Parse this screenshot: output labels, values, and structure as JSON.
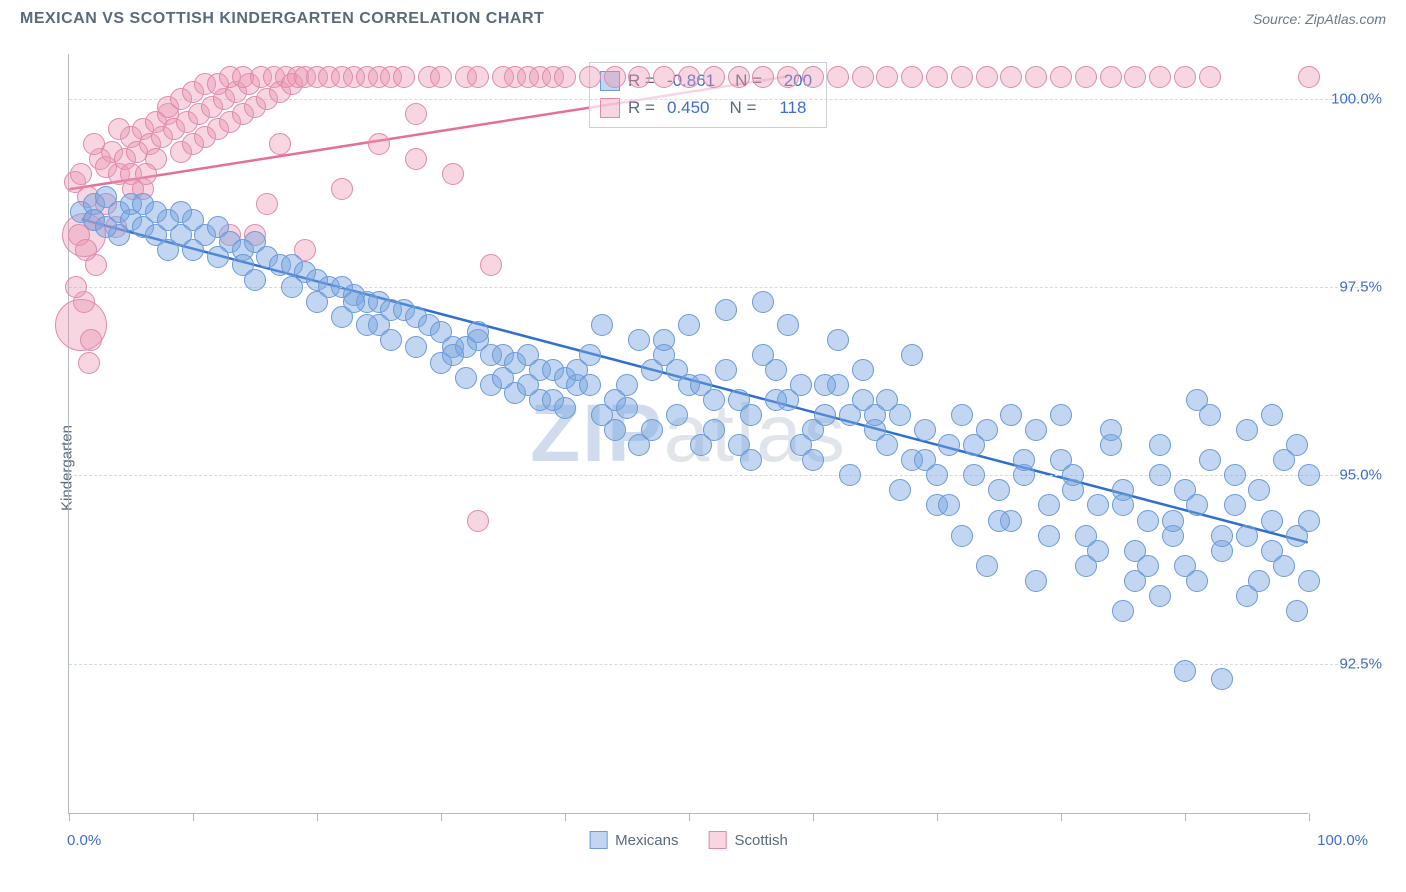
{
  "header": {
    "title": "MEXICAN VS SCOTTISH KINDERGARTEN CORRELATION CHART",
    "source_prefix": "Source: ",
    "source_name": "ZipAtlas.com"
  },
  "chart": {
    "type": "scatter",
    "ylabel": "Kindergarten",
    "xlim": [
      0,
      100
    ],
    "ylim": [
      90.5,
      100.6
    ],
    "x_tick_positions": [
      0,
      10,
      20,
      30,
      40,
      50,
      60,
      70,
      80,
      90,
      100
    ],
    "x_label_min": "0.0%",
    "x_label_max": "100.0%",
    "y_ticks": [
      {
        "v": 92.5,
        "label": "92.5%"
      },
      {
        "v": 95.0,
        "label": "95.0%"
      },
      {
        "v": 97.5,
        "label": "97.5%"
      },
      {
        "v": 100.0,
        "label": "100.0%"
      }
    ],
    "background_color": "#ffffff",
    "grid_color": "#d5dae0",
    "axis_color": "#b0b7c0",
    "tick_label_color": "#3b6fc9",
    "text_color": "#5a6a7a",
    "watermark_main": "ZIP",
    "watermark_rest": "atlas",
    "series": {
      "mexicans": {
        "label": "Mexicans",
        "fill": "rgba(120,165,225,0.45)",
        "stroke": "#6a9ad8",
        "trend_color": "#2f6fd0",
        "trend": {
          "x1": 1,
          "y1": 98.4,
          "x2": 100,
          "y2": 94.1
        },
        "marker_r": 11
      },
      "scottish": {
        "label": "Scottish",
        "fill": "rgba(235,150,180,0.40)",
        "stroke": "#e08aab",
        "trend_color": "#e56f9a",
        "trend": {
          "x1": 0,
          "y1": 98.8,
          "x2": 58,
          "y2": 100.3
        },
        "marker_r": 11
      }
    },
    "stats": [
      {
        "swatch_fill": "rgba(120,165,225,0.45)",
        "swatch_stroke": "#6a9ad8",
        "r_label": "R =",
        "r": "-0.861",
        "n_label": "N =",
        "n": "200"
      },
      {
        "swatch_fill": "rgba(235,150,180,0.40)",
        "swatch_stroke": "#e08aab",
        "r_label": "R =",
        "r": "0.450",
        "n_label": "N =",
        "n": "118"
      }
    ],
    "legend": [
      {
        "label": "Mexicans",
        "fill": "rgba(120,165,225,0.45)",
        "stroke": "#6a9ad8"
      },
      {
        "label": "Scottish",
        "fill": "rgba(235,150,180,0.40)",
        "stroke": "#e08aab"
      }
    ],
    "points": {
      "mexicans": [
        [
          1,
          98.5
        ],
        [
          2,
          98.6
        ],
        [
          3,
          98.7
        ],
        [
          2,
          98.4
        ],
        [
          4,
          98.5
        ],
        [
          5,
          98.4
        ],
        [
          4,
          98.2
        ],
        [
          6,
          98.3
        ],
        [
          3,
          98.3
        ],
        [
          7,
          98.2
        ],
        [
          5,
          98.6
        ],
        [
          6,
          98.6
        ],
        [
          8,
          98.4
        ],
        [
          7,
          98.5
        ],
        [
          9,
          98.2
        ],
        [
          8,
          98.0
        ],
        [
          10,
          98.4
        ],
        [
          9,
          98.5
        ],
        [
          11,
          98.2
        ],
        [
          12,
          98.3
        ],
        [
          10,
          98.0
        ],
        [
          13,
          98.1
        ],
        [
          12,
          97.9
        ],
        [
          14,
          98.0
        ],
        [
          15,
          98.1
        ],
        [
          14,
          97.8
        ],
        [
          16,
          97.9
        ],
        [
          17,
          97.8
        ],
        [
          15,
          97.6
        ],
        [
          18,
          97.8
        ],
        [
          19,
          97.7
        ],
        [
          18,
          97.5
        ],
        [
          20,
          97.6
        ],
        [
          21,
          97.5
        ],
        [
          20,
          97.3
        ],
        [
          22,
          97.5
        ],
        [
          23,
          97.4
        ],
        [
          24,
          97.3
        ],
        [
          22,
          97.1
        ],
        [
          25,
          97.3
        ],
        [
          26,
          97.2
        ],
        [
          24,
          97.0
        ],
        [
          27,
          97.2
        ],
        [
          28,
          97.1
        ],
        [
          26,
          96.8
        ],
        [
          29,
          97.0
        ],
        [
          30,
          96.9
        ],
        [
          28,
          96.7
        ],
        [
          31,
          96.7
        ],
        [
          32,
          96.7
        ],
        [
          30,
          96.5
        ],
        [
          33,
          96.8
        ],
        [
          34,
          96.6
        ],
        [
          32,
          96.3
        ],
        [
          35,
          96.6
        ],
        [
          36,
          96.5
        ],
        [
          34,
          96.2
        ],
        [
          37,
          96.6
        ],
        [
          38,
          96.4
        ],
        [
          36,
          96.1
        ],
        [
          39,
          96.4
        ],
        [
          40,
          96.3
        ],
        [
          38,
          96.0
        ],
        [
          41,
          96.2
        ],
        [
          42,
          96.2
        ],
        [
          40,
          95.9
        ],
        [
          43,
          97.0
        ],
        [
          44,
          96.0
        ],
        [
          42,
          96.6
        ],
        [
          45,
          95.9
        ],
        [
          46,
          96.8
        ],
        [
          44,
          95.6
        ],
        [
          47,
          96.4
        ],
        [
          48,
          96.6
        ],
        [
          46,
          95.4
        ],
        [
          49,
          96.4
        ],
        [
          50,
          96.2
        ],
        [
          48,
          96.8
        ],
        [
          51,
          96.2
        ],
        [
          52,
          96.0
        ],
        [
          50,
          97.0
        ],
        [
          53,
          97.2
        ],
        [
          54,
          96.0
        ],
        [
          52,
          95.6
        ],
        [
          55,
          95.8
        ],
        [
          56,
          96.6
        ],
        [
          54,
          95.4
        ],
        [
          57,
          96.4
        ],
        [
          58,
          96.0
        ],
        [
          56,
          97.3
        ],
        [
          59,
          96.2
        ],
        [
          60,
          95.6
        ],
        [
          58,
          97.0
        ],
        [
          61,
          95.8
        ],
        [
          62,
          96.2
        ],
        [
          60,
          95.2
        ],
        [
          63,
          95.8
        ],
        [
          64,
          96.0
        ],
        [
          62,
          96.8
        ],
        [
          65,
          95.6
        ],
        [
          66,
          95.4
        ],
        [
          64,
          96.4
        ],
        [
          67,
          95.8
        ],
        [
          68,
          95.2
        ],
        [
          66,
          96.0
        ],
        [
          69,
          95.6
        ],
        [
          70,
          95.0
        ],
        [
          68,
          96.6
        ],
        [
          71,
          95.4
        ],
        [
          72,
          95.8
        ],
        [
          70,
          94.6
        ],
        [
          73,
          95.0
        ],
        [
          74,
          95.6
        ],
        [
          72,
          94.2
        ],
        [
          75,
          94.8
        ],
        [
          76,
          95.8
        ],
        [
          74,
          93.8
        ],
        [
          77,
          95.0
        ],
        [
          78,
          95.6
        ],
        [
          76,
          94.4
        ],
        [
          79,
          94.6
        ],
        [
          80,
          95.2
        ],
        [
          78,
          93.6
        ],
        [
          81,
          94.8
        ],
        [
          82,
          94.2
        ],
        [
          80,
          95.8
        ],
        [
          83,
          94.6
        ],
        [
          84,
          95.4
        ],
        [
          82,
          93.8
        ],
        [
          85,
          94.8
        ],
        [
          86,
          94.0
        ],
        [
          84,
          95.6
        ],
        [
          87,
          94.4
        ],
        [
          88,
          95.0
        ],
        [
          86,
          93.6
        ],
        [
          89,
          94.2
        ],
        [
          90,
          94.8
        ],
        [
          88,
          93.4
        ],
        [
          91,
          94.6
        ],
        [
          92,
          95.2
        ],
        [
          90,
          93.8
        ],
        [
          93,
          94.0
        ],
        [
          94,
          94.6
        ],
        [
          92,
          95.8
        ],
        [
          95,
          94.2
        ],
        [
          96,
          93.6
        ],
        [
          94,
          95.0
        ],
        [
          97,
          94.4
        ],
        [
          98,
          93.8
        ],
        [
          96,
          94.8
        ],
        [
          99,
          94.2
        ],
        [
          100,
          93.6
        ],
        [
          98,
          95.2
        ],
        [
          85,
          93.2
        ],
        [
          90,
          92.4
        ],
        [
          93,
          92.3
        ],
        [
          88,
          95.4
        ],
        [
          95,
          95.6
        ],
        [
          97,
          95.8
        ],
        [
          99,
          95.4
        ],
        [
          91,
          96.0
        ],
        [
          23,
          97.3
        ],
        [
          25,
          97.0
        ],
        [
          31,
          96.6
        ],
        [
          33,
          96.9
        ],
        [
          35,
          96.3
        ],
        [
          37,
          96.2
        ],
        [
          39,
          96.0
        ],
        [
          41,
          96.4
        ],
        [
          43,
          95.8
        ],
        [
          45,
          96.2
        ],
        [
          47,
          95.6
        ],
        [
          49,
          95.8
        ],
        [
          51,
          95.4
        ],
        [
          53,
          96.4
        ],
        [
          55,
          95.2
        ],
        [
          57,
          96.0
        ],
        [
          59,
          95.4
        ],
        [
          61,
          96.2
        ],
        [
          63,
          95.0
        ],
        [
          65,
          95.8
        ],
        [
          67,
          94.8
        ],
        [
          69,
          95.2
        ],
        [
          71,
          94.6
        ],
        [
          73,
          95.4
        ],
        [
          75,
          94.4
        ],
        [
          77,
          95.2
        ],
        [
          79,
          94.2
        ],
        [
          81,
          95.0
        ],
        [
          83,
          94.0
        ],
        [
          85,
          94.6
        ],
        [
          87,
          93.8
        ],
        [
          89,
          94.4
        ],
        [
          91,
          93.6
        ],
        [
          93,
          94.2
        ],
        [
          95,
          93.4
        ],
        [
          97,
          94.0
        ],
        [
          99,
          93.2
        ],
        [
          100,
          94.4
        ],
        [
          100,
          95.0
        ]
      ],
      "scottish": [
        [
          0.5,
          98.9
        ],
        [
          1,
          99.0
        ],
        [
          1.5,
          98.7
        ],
        [
          2,
          98.4
        ],
        [
          0.8,
          98.2
        ],
        [
          1.2,
          97.3
        ],
        [
          1.8,
          96.8
        ],
        [
          2.5,
          99.2
        ],
        [
          3,
          99.1
        ],
        [
          2,
          99.4
        ],
        [
          3.5,
          99.3
        ],
        [
          4,
          99.0
        ],
        [
          3,
          98.6
        ],
        [
          4.5,
          99.2
        ],
        [
          5,
          99.5
        ],
        [
          4,
          99.6
        ],
        [
          5.5,
          99.3
        ],
        [
          6,
          99.6
        ],
        [
          5,
          99.0
        ],
        [
          6.5,
          99.4
        ],
        [
          7,
          99.7
        ],
        [
          6,
          98.8
        ],
        [
          7.5,
          99.5
        ],
        [
          8,
          99.8
        ],
        [
          7,
          99.2
        ],
        [
          8.5,
          99.6
        ],
        [
          9,
          99.3
        ],
        [
          8,
          99.9
        ],
        [
          9.5,
          99.7
        ],
        [
          10,
          99.4
        ],
        [
          9,
          100.0
        ],
        [
          10.5,
          99.8
        ],
        [
          11,
          99.5
        ],
        [
          10,
          100.1
        ],
        [
          11.5,
          99.9
        ],
        [
          12,
          99.6
        ],
        [
          11,
          100.2
        ],
        [
          12.5,
          100.0
        ],
        [
          13,
          99.7
        ],
        [
          12,
          100.2
        ],
        [
          13.5,
          100.1
        ],
        [
          14,
          99.8
        ],
        [
          13,
          100.3
        ],
        [
          14.5,
          100.2
        ],
        [
          15,
          99.9
        ],
        [
          14,
          100.3
        ],
        [
          15.5,
          100.3
        ],
        [
          16,
          100.0
        ],
        [
          15,
          98.2
        ],
        [
          16.5,
          100.3
        ],
        [
          17,
          100.1
        ],
        [
          16,
          98.6
        ],
        [
          17.5,
          100.3
        ],
        [
          18,
          100.2
        ],
        [
          17,
          99.4
        ],
        [
          18.5,
          100.3
        ],
        [
          19,
          100.3
        ],
        [
          20,
          100.3
        ],
        [
          21,
          100.3
        ],
        [
          22,
          100.3
        ],
        [
          23,
          100.3
        ],
        [
          24,
          100.3
        ],
        [
          25,
          100.3
        ],
        [
          26,
          100.3
        ],
        [
          27,
          100.3
        ],
        [
          28,
          99.8
        ],
        [
          29,
          100.3
        ],
        [
          30,
          100.3
        ],
        [
          31,
          99.0
        ],
        [
          32,
          100.3
        ],
        [
          33,
          100.3
        ],
        [
          34,
          97.8
        ],
        [
          35,
          100.3
        ],
        [
          36,
          100.3
        ],
        [
          37,
          100.3
        ],
        [
          38,
          100.3
        ],
        [
          39,
          100.3
        ],
        [
          40,
          100.3
        ],
        [
          42,
          100.3
        ],
        [
          44,
          100.3
        ],
        [
          46,
          100.3
        ],
        [
          48,
          100.3
        ],
        [
          50,
          100.3
        ],
        [
          52,
          100.3
        ],
        [
          54,
          100.3
        ],
        [
          56,
          100.3
        ],
        [
          58,
          100.3
        ],
        [
          60,
          100.3
        ],
        [
          62,
          100.3
        ],
        [
          64,
          100.3
        ],
        [
          66,
          100.3
        ],
        [
          68,
          100.3
        ],
        [
          70,
          100.3
        ],
        [
          72,
          100.3
        ],
        [
          74,
          100.3
        ],
        [
          76,
          100.3
        ],
        [
          78,
          100.3
        ],
        [
          80,
          100.3
        ],
        [
          82,
          100.3
        ],
        [
          84,
          100.3
        ],
        [
          86,
          100.3
        ],
        [
          88,
          100.3
        ],
        [
          90,
          100.3
        ],
        [
          92,
          100.3
        ],
        [
          100,
          100.3
        ],
        [
          33,
          94.4
        ],
        [
          13,
          98.2
        ],
        [
          19,
          98.0
        ],
        [
          22,
          98.8
        ],
        [
          25,
          99.4
        ],
        [
          28,
          99.2
        ],
        [
          2.2,
          97.8
        ],
        [
          3.8,
          98.3
        ],
        [
          5.2,
          98.8
        ],
        [
          1.4,
          98.0
        ],
        [
          0.6,
          97.5
        ],
        [
          1.6,
          96.5
        ],
        [
          6.2,
          99.0
        ]
      ],
      "scottish_large": [
        {
          "x": 1.2,
          "y": 98.2,
          "r": 22
        },
        {
          "x": 1.0,
          "y": 97.0,
          "r": 26
        }
      ]
    }
  }
}
